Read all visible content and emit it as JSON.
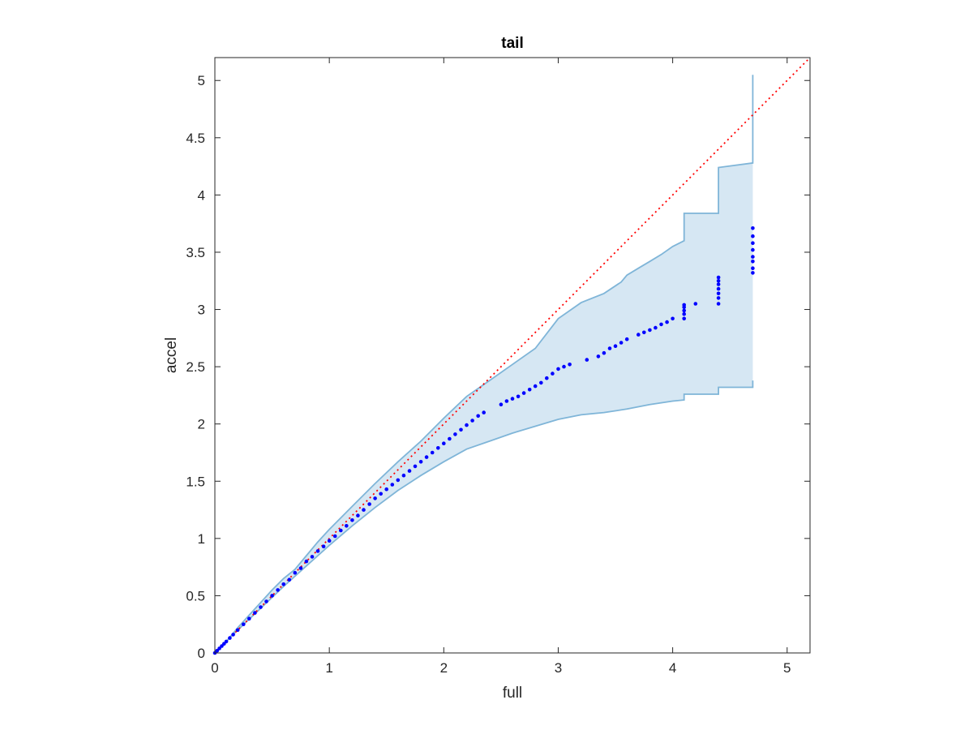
{
  "chart_data": {
    "type": "scatter",
    "title": "tail",
    "xlabel": "full",
    "ylabel": "accel",
    "xlim": [
      0,
      5.2
    ],
    "ylim": [
      0,
      5.2
    ],
    "xticks": [
      0,
      1,
      2,
      3,
      4,
      5
    ],
    "yticks": [
      0,
      0.5,
      1,
      1.5,
      2,
      2.5,
      3,
      3.5,
      4,
      4.5,
      5
    ],
    "xtick_labels": [
      "0",
      "1",
      "2",
      "3",
      "4",
      "5"
    ],
    "ytick_labels": [
      "0",
      "0.5",
      "1",
      "1.5",
      "2",
      "2.5",
      "3",
      "3.5",
      "4",
      "4.5",
      "5"
    ],
    "grid": false,
    "reference_line": {
      "style": "dotted",
      "color": "#ff0000",
      "from": [
        0,
        0
      ],
      "to": [
        5.2,
        5.2
      ]
    },
    "band": {
      "color": "#d6e7f3",
      "edge_color": "#7fb5d8",
      "upper": [
        [
          0,
          0
        ],
        [
          0.1,
          0.1
        ],
        [
          0.2,
          0.22
        ],
        [
          0.3,
          0.33
        ],
        [
          0.4,
          0.44
        ],
        [
          0.5,
          0.55
        ],
        [
          0.6,
          0.65
        ],
        [
          0.7,
          0.73
        ],
        [
          0.8,
          0.85
        ],
        [
          0.9,
          0.97
        ],
        [
          1.0,
          1.08
        ],
        [
          1.2,
          1.28
        ],
        [
          1.4,
          1.48
        ],
        [
          1.6,
          1.67
        ],
        [
          1.8,
          1.85
        ],
        [
          2.0,
          2.05
        ],
        [
          2.2,
          2.24
        ],
        [
          2.4,
          2.38
        ],
        [
          2.6,
          2.52
        ],
        [
          2.8,
          2.66
        ],
        [
          3.0,
          2.92
        ],
        [
          3.2,
          3.06
        ],
        [
          3.4,
          3.14
        ],
        [
          3.55,
          3.24
        ],
        [
          3.6,
          3.3
        ],
        [
          3.7,
          3.36
        ],
        [
          3.8,
          3.42
        ],
        [
          3.9,
          3.48
        ],
        [
          4.0,
          3.55
        ],
        [
          4.1,
          3.6
        ],
        [
          4.1,
          3.84
        ],
        [
          4.4,
          3.84
        ],
        [
          4.4,
          4.24
        ],
        [
          4.7,
          4.28
        ],
        [
          4.7,
          5.05
        ]
      ],
      "lower": [
        [
          0,
          0
        ],
        [
          0.2,
          0.2
        ],
        [
          0.4,
          0.39
        ],
        [
          0.6,
          0.58
        ],
        [
          0.8,
          0.76
        ],
        [
          1.0,
          0.94
        ],
        [
          1.2,
          1.11
        ],
        [
          1.4,
          1.27
        ],
        [
          1.6,
          1.42
        ],
        [
          1.8,
          1.55
        ],
        [
          2.0,
          1.67
        ],
        [
          2.2,
          1.78
        ],
        [
          2.4,
          1.85
        ],
        [
          2.6,
          1.92
        ],
        [
          2.8,
          1.98
        ],
        [
          3.0,
          2.04
        ],
        [
          3.2,
          2.08
        ],
        [
          3.4,
          2.1
        ],
        [
          3.6,
          2.13
        ],
        [
          3.8,
          2.17
        ],
        [
          4.0,
          2.2
        ],
        [
          4.1,
          2.21
        ],
        [
          4.1,
          2.26
        ],
        [
          4.4,
          2.26
        ],
        [
          4.4,
          2.32
        ],
        [
          4.7,
          2.32
        ],
        [
          4.7,
          2.38
        ]
      ]
    },
    "series": [
      {
        "color": "#0000ff",
        "x": [
          0.0,
          0.02,
          0.04,
          0.06,
          0.08,
          0.1,
          0.13,
          0.16,
          0.2,
          0.25,
          0.3,
          0.35,
          0.4,
          0.45,
          0.5,
          0.55,
          0.6,
          0.65,
          0.7,
          0.75,
          0.8,
          0.85,
          0.9,
          0.95,
          1.0,
          1.05,
          1.1,
          1.15,
          1.2,
          1.25,
          1.3,
          1.35,
          1.4,
          1.45,
          1.5,
          1.55,
          1.6,
          1.65,
          1.7,
          1.75,
          1.8,
          1.85,
          1.9,
          1.95,
          2.0,
          2.05,
          2.1,
          2.15,
          2.2,
          2.25,
          2.3,
          2.35,
          2.5,
          2.55,
          2.6,
          2.65,
          2.7,
          2.75,
          2.8,
          2.85,
          2.9,
          2.95,
          3.0,
          3.05,
          3.1,
          3.25,
          3.35,
          3.4,
          3.45,
          3.5,
          3.55,
          3.6,
          3.7,
          3.75,
          3.8,
          3.85,
          3.9,
          3.95,
          4.0,
          4.1,
          4.1,
          4.1,
          4.1,
          4.1,
          4.2,
          4.4,
          4.4,
          4.4,
          4.4,
          4.4,
          4.4,
          4.4,
          4.7,
          4.7,
          4.7,
          4.7,
          4.7,
          4.7,
          4.7,
          4.7
        ],
        "y": [
          0.0,
          0.02,
          0.04,
          0.06,
          0.08,
          0.1,
          0.13,
          0.16,
          0.2,
          0.25,
          0.3,
          0.35,
          0.4,
          0.45,
          0.5,
          0.55,
          0.6,
          0.64,
          0.7,
          0.74,
          0.8,
          0.84,
          0.89,
          0.93,
          0.98,
          1.02,
          1.07,
          1.11,
          1.16,
          1.2,
          1.25,
          1.3,
          1.35,
          1.39,
          1.43,
          1.47,
          1.51,
          1.55,
          1.59,
          1.63,
          1.67,
          1.71,
          1.75,
          1.79,
          1.83,
          1.87,
          1.91,
          1.95,
          1.99,
          2.03,
          2.07,
          2.1,
          2.17,
          2.2,
          2.22,
          2.24,
          2.27,
          2.3,
          2.33,
          2.36,
          2.4,
          2.44,
          2.48,
          2.5,
          2.52,
          2.56,
          2.59,
          2.62,
          2.66,
          2.68,
          2.71,
          2.74,
          2.78,
          2.8,
          2.82,
          2.84,
          2.87,
          2.89,
          2.92,
          2.92,
          2.96,
          2.99,
          3.02,
          3.04,
          3.05,
          3.05,
          3.1,
          3.14,
          3.18,
          3.22,
          3.25,
          3.28,
          3.32,
          3.36,
          3.42,
          3.46,
          3.52,
          3.58,
          3.64,
          3.71
        ]
      }
    ]
  }
}
